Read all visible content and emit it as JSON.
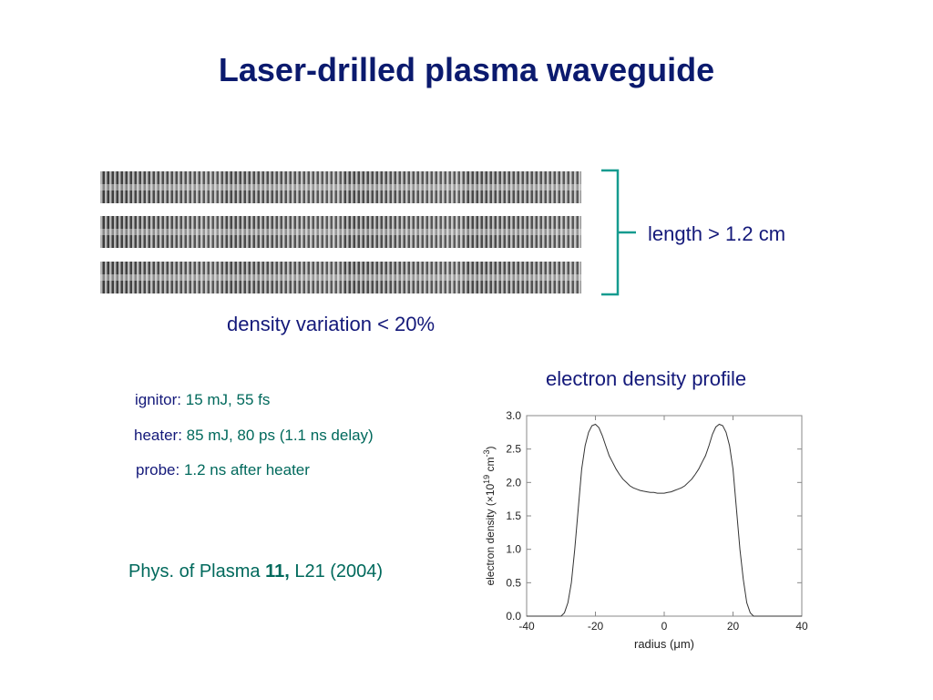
{
  "slide": {
    "title": "Laser-drilled plasma waveguide",
    "length_label": "length > 1.2 cm",
    "density_variation": "density variation < 20%",
    "profile_title": "electron density profile"
  },
  "params": [
    {
      "label": "ignitor:",
      "value": "15 mJ, 55 fs"
    },
    {
      "label": "heater:",
      "value": "85 mJ, 80 ps (1.1 ns delay)"
    },
    {
      "label": "probe:",
      "value": "1.2 ns after heater"
    }
  ],
  "citation": {
    "journal": "Phys. of Plasma",
    "volume": "11,",
    "page": "L21 (2004)"
  },
  "colors": {
    "navy": "#14197a",
    "teal": "#00695c",
    "bracket": "#159b8f"
  },
  "chart_data": {
    "type": "line",
    "title": "electron density profile",
    "xlabel": "radius (μm)",
    "ylabel_parts": {
      "pre": "electron density (×10",
      "sup1": "19",
      "mid": " cm",
      "sup2": "-3",
      "post": ")"
    },
    "xlim": [
      -40,
      40
    ],
    "ylim": [
      0,
      3.0
    ],
    "xticks": [
      -40,
      -20,
      0,
      20,
      40
    ],
    "xtick_labels": [
      "-40",
      "-20",
      "0",
      "20",
      "40"
    ],
    "yticks": [
      0,
      0.5,
      1.0,
      1.5,
      2.0,
      2.5,
      3.0
    ],
    "ytick_labels": [
      "0.0",
      "0.5",
      "1.0",
      "1.5",
      "2.0",
      "2.5",
      "3.0"
    ],
    "grid": false,
    "series": [
      {
        "x": [
          -40,
          -30,
          -29,
          -28,
          -27,
          -26,
          -25,
          -24,
          -23,
          -22,
          -21,
          -20,
          -19,
          -18,
          -17,
          -16,
          -15,
          -14,
          -13,
          -12,
          -11,
          -10,
          -9,
          -8,
          -7,
          -6,
          -5,
          -4,
          -3,
          -2,
          -1,
          0,
          1,
          2,
          3,
          4,
          5,
          6,
          7,
          8,
          9,
          10,
          11,
          12,
          13,
          14,
          15,
          16,
          17,
          18,
          19,
          20,
          21,
          22,
          23,
          24,
          25,
          26,
          27,
          28,
          29,
          30,
          40
        ],
        "y": [
          0.0,
          0.0,
          0.05,
          0.2,
          0.5,
          1.0,
          1.6,
          2.2,
          2.55,
          2.75,
          2.85,
          2.87,
          2.82,
          2.7,
          2.55,
          2.4,
          2.3,
          2.2,
          2.12,
          2.05,
          2.0,
          1.95,
          1.92,
          1.9,
          1.88,
          1.87,
          1.86,
          1.85,
          1.85,
          1.84,
          1.84,
          1.84,
          1.85,
          1.86,
          1.88,
          1.9,
          1.92,
          1.95,
          2.0,
          2.05,
          2.12,
          2.2,
          2.3,
          2.4,
          2.55,
          2.72,
          2.83,
          2.87,
          2.85,
          2.75,
          2.55,
          2.2,
          1.6,
          1.0,
          0.55,
          0.2,
          0.05,
          0.0,
          0.0,
          0.0,
          0.0,
          0.0,
          0.0
        ]
      }
    ]
  }
}
